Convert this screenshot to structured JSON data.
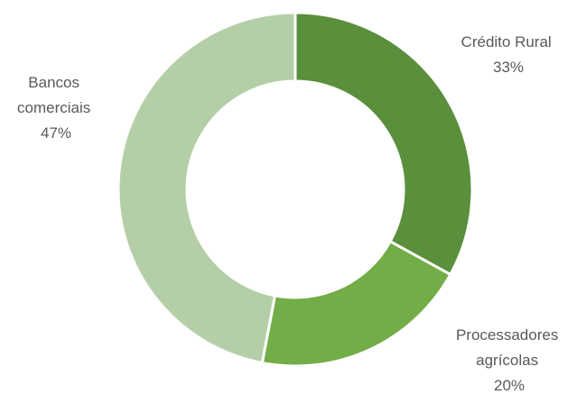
{
  "chart_data": {
    "type": "pie",
    "variant": "donut",
    "title": "",
    "slices": [
      {
        "label_lines": [
          "Crédito Rural"
        ],
        "percent_label": "33%",
        "value": 33,
        "color": "#5a8f3b"
      },
      {
        "label_lines": [
          "Processadores",
          "agrícolas"
        ],
        "percent_label": "20%",
        "value": 20,
        "color": "#72ad47"
      },
      {
        "label_lines": [
          "Bancos",
          "comerciais"
        ],
        "percent_label": "47%",
        "value": 47,
        "color": "#b4cfa7"
      }
    ],
    "legend": "none"
  }
}
